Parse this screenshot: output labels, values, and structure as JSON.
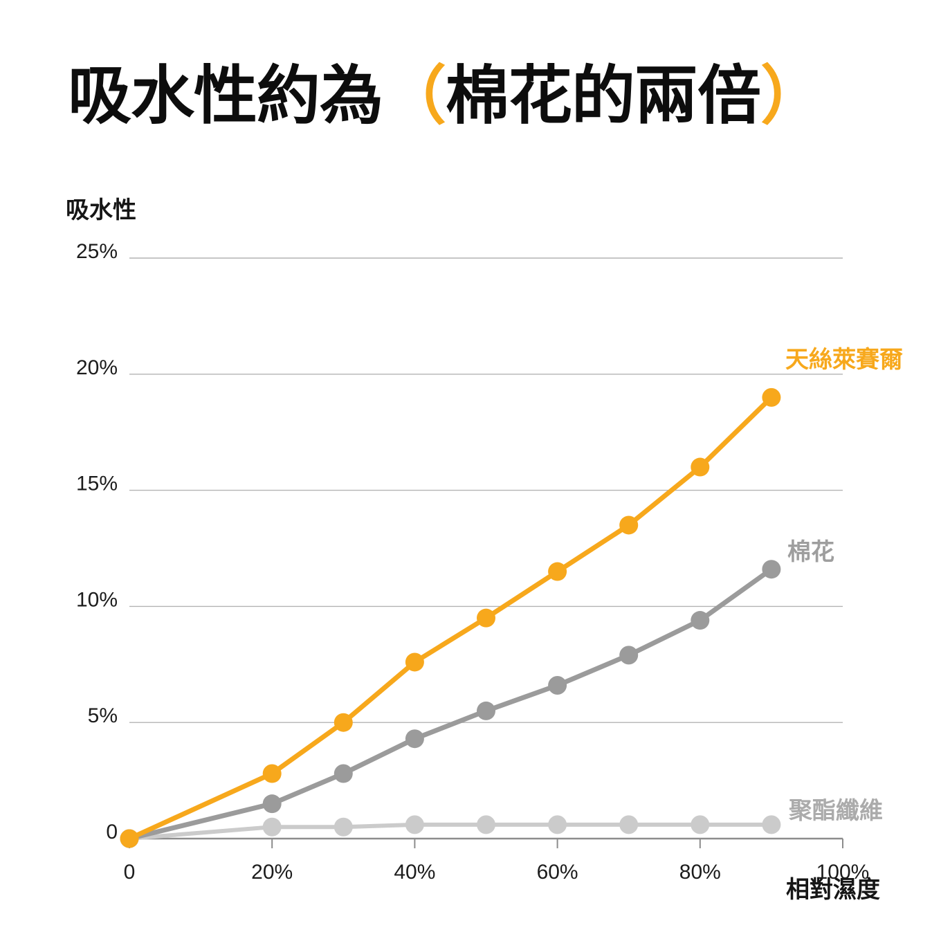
{
  "title": {
    "prefix": "吸水性約為",
    "open_paren": "（",
    "highlight": "棉花的兩倍",
    "close_paren": "）"
  },
  "colors": {
    "accent_orange": "#F7A81C",
    "cotton_gray": "#9B9B9B",
    "cotton_label_gray": "#9E9E9E",
    "polyester_gray": "#CBCBCB",
    "polyester_label_gray": "#ABABAB",
    "grid": "#B3B3B3",
    "axis": "#8C8C8C",
    "text": "#111111"
  },
  "chart_data": {
    "type": "line",
    "title": "吸水性約為（棉花的兩倍）",
    "ylabel": "吸水性",
    "xlabel": "相對濕度",
    "xlim": [
      0,
      100
    ],
    "ylim": [
      0,
      25
    ],
    "grid": "horizontal-only",
    "legend_position": "right-of-line-ends",
    "x_ticks": [
      {
        "value": 0,
        "label": "0"
      },
      {
        "value": 20,
        "label": "20%"
      },
      {
        "value": 40,
        "label": "40%"
      },
      {
        "value": 60,
        "label": "60%"
      },
      {
        "value": 80,
        "label": "80%"
      },
      {
        "value": 100,
        "label": "100%"
      }
    ],
    "y_ticks": [
      {
        "value": 0,
        "label": "0"
      },
      {
        "value": 5,
        "label": "5%"
      },
      {
        "value": 10,
        "label": "10%"
      },
      {
        "value": 15,
        "label": "15%"
      },
      {
        "value": 20,
        "label": "20%"
      },
      {
        "value": 25,
        "label": "25%"
      }
    ],
    "x": [
      0,
      20,
      30,
      40,
      50,
      60,
      70,
      80,
      90
    ],
    "series": [
      {
        "name": "tencel-lyocell",
        "label": "天絲萊賽爾",
        "color": "#F7A81C",
        "label_color": "#F7A81C",
        "line_width": 7,
        "values": [
          0,
          2.8,
          5.0,
          7.6,
          9.5,
          11.5,
          13.5,
          16.0,
          19.0
        ]
      },
      {
        "name": "cotton",
        "label": "棉花",
        "color": "#9B9B9B",
        "label_color": "#9E9E9E",
        "line_width": 7,
        "values": [
          0,
          1.5,
          2.8,
          4.3,
          5.5,
          6.6,
          7.9,
          9.4,
          11.6
        ]
      },
      {
        "name": "polyester",
        "label": "聚酯纖維",
        "color": "#CBCBCB",
        "label_color": "#ABABAB",
        "line_width": 6,
        "values": [
          0,
          0.5,
          0.5,
          0.6,
          0.6,
          0.6,
          0.6,
          0.6,
          0.6
        ]
      }
    ]
  }
}
